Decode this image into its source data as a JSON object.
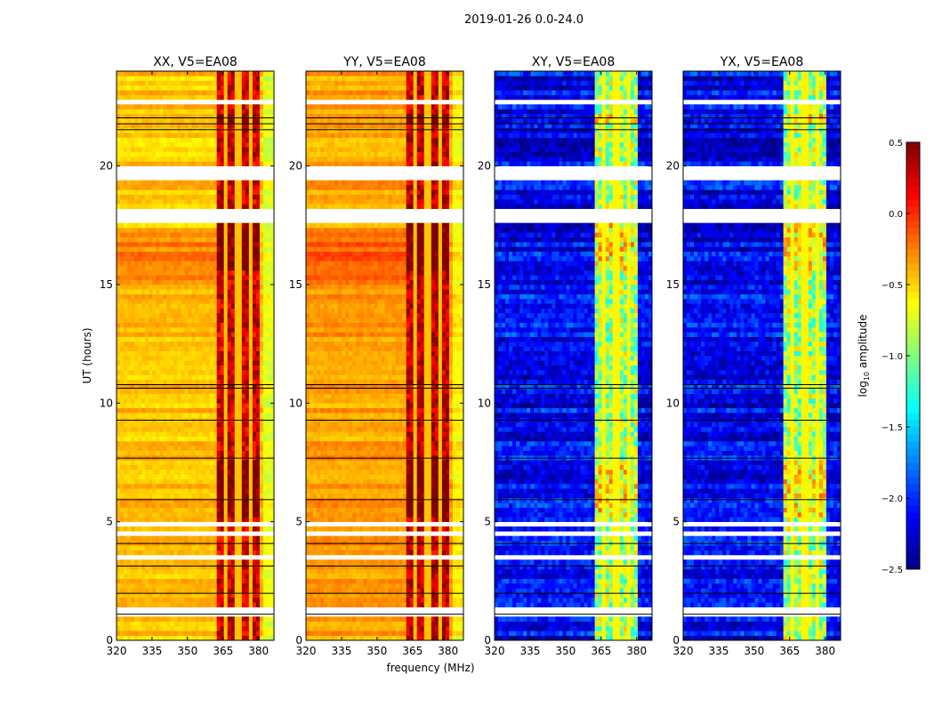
{
  "chart_data": {
    "type": "heatmap",
    "suptitle": "2019-01-26 0.0-24.0",
    "xlabel": "frequency (MHz)",
    "ylabel": "UT (hours)",
    "xlim": [
      320,
      386.5
    ],
    "ylim": [
      0,
      24
    ],
    "xticks": [
      "320",
      "335",
      "350",
      "365",
      "380"
    ],
    "xtick_values": [
      320,
      335,
      350,
      365,
      380
    ],
    "yticks": [
      "0",
      "5",
      "10",
      "15",
      "20"
    ],
    "ytick_values": [
      0,
      5,
      10,
      15,
      20
    ],
    "colorbar": {
      "label_main": "log",
      "label_sub": "10",
      "label_tail": " amplitude",
      "range": [
        -2.5,
        0.5
      ],
      "ticks": [
        "0.5",
        "0.0",
        "−0.5",
        "−1.0",
        "−1.5",
        "−2.0",
        "−2.5"
      ],
      "tick_values": [
        0.5,
        0.0,
        -0.5,
        -1.0,
        -1.5,
        -2.0,
        -2.5
      ],
      "colormap": "jet"
    },
    "panels": [
      {
        "title": "XX, V5=EA08",
        "baseline": -0.45,
        "rfi_level": 0.25,
        "show_ylabel": true
      },
      {
        "title": "YY, V5=EA08",
        "baseline": -0.35,
        "rfi_level": 0.3,
        "show_ylabel": false
      },
      {
        "title": "XY, V5=EA08",
        "baseline": -2.15,
        "rfi_level": -0.9,
        "show_ylabel": false
      },
      {
        "title": "YX, V5=EA08",
        "baseline": -2.15,
        "rfi_level": -0.9,
        "show_ylabel": false
      }
    ],
    "rfi_band_mhz": [
      362,
      380
    ],
    "rfi_gaps_mhz": [
      366.5,
      371.5,
      376.5
    ],
    "flagged_ut_hours": [
      [
        19.5,
        20.05
      ],
      [
        17.7,
        18.2
      ],
      [
        4.75,
        5.0
      ],
      [
        4.45,
        4.55
      ],
      [
        3.4,
        3.55
      ],
      [
        1.25,
        1.35
      ],
      [
        1.0,
        1.1
      ],
      [
        13.95,
        14.05
      ],
      [
        22.7,
        22.78
      ],
      [
        22.2,
        22.28
      ]
    ],
    "high_ut_hours": [
      [
        21.75,
        22.2
      ],
      [
        5.2,
        7.5
      ],
      [
        15.7,
        17.5
      ]
    ]
  }
}
